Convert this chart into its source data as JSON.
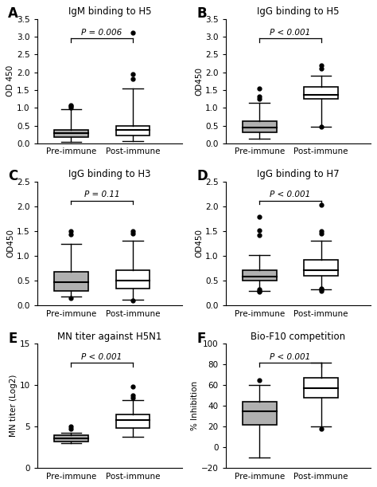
{
  "panels": [
    {
      "label": "A",
      "title": "IgM binding to H5",
      "ylabel": "OD 450",
      "ylim": [
        0.0,
        3.5
      ],
      "yticks": [
        0.0,
        0.5,
        1.0,
        1.5,
        2.0,
        2.5,
        3.0,
        3.5
      ],
      "pvalue": "P = 0.006",
      "pre": {
        "q1": 0.18,
        "median": 0.28,
        "q3": 0.38,
        "whisker_low": 0.05,
        "whisker_high": 0.97,
        "outliers": [
          1.0,
          1.05,
          1.08
        ],
        "color": "#b0b0b0"
      },
      "post": {
        "q1": 0.22,
        "median": 0.37,
        "q3": 0.48,
        "whisker_low": 0.07,
        "whisker_high": 1.55,
        "outliers": [
          1.95,
          1.82,
          3.12
        ],
        "color": "#ffffff"
      }
    },
    {
      "label": "B",
      "title": "IgG binding to H5",
      "ylabel": "OD450",
      "ylim": [
        0.0,
        3.5
      ],
      "yticks": [
        0.0,
        0.5,
        1.0,
        1.5,
        2.0,
        2.5,
        3.0,
        3.5
      ],
      "pvalue": "P < 0.001",
      "pre": {
        "q1": 0.32,
        "median": 0.45,
        "q3": 0.63,
        "whisker_low": 0.12,
        "whisker_high": 1.13,
        "outliers": [
          1.25,
          1.32,
          1.55
        ],
        "color": "#b0b0b0"
      },
      "post": {
        "q1": 1.25,
        "median": 1.37,
        "q3": 1.6,
        "whisker_low": 0.47,
        "whisker_high": 1.9,
        "outliers": [
          2.1,
          2.2,
          0.47
        ],
        "color": "#ffffff"
      }
    },
    {
      "label": "C",
      "title": "IgG binding to H3",
      "ylabel": "OD450",
      "ylim": [
        0.0,
        2.5
      ],
      "yticks": [
        0.0,
        0.5,
        1.0,
        1.5,
        2.0,
        2.5
      ],
      "pvalue": "P = 0.11",
      "pre": {
        "q1": 0.3,
        "median": 0.48,
        "q3": 0.68,
        "whisker_low": 0.18,
        "whisker_high": 1.25,
        "outliers": [
          1.43,
          1.5,
          0.15
        ],
        "color": "#b0b0b0"
      },
      "post": {
        "q1": 0.35,
        "median": 0.5,
        "q3": 0.72,
        "whisker_low": 0.12,
        "whisker_high": 1.3,
        "outliers": [
          1.45,
          1.5,
          0.1
        ],
        "color": "#ffffff"
      }
    },
    {
      "label": "D",
      "title": "IgG binding to H7",
      "ylabel": "OD450",
      "ylim": [
        0.0,
        2.5
      ],
      "yticks": [
        0.0,
        0.5,
        1.0,
        1.5,
        2.0,
        2.5
      ],
      "pvalue": "P < 0.001",
      "pre": {
        "q1": 0.5,
        "median": 0.58,
        "q3": 0.72,
        "whisker_low": 0.3,
        "whisker_high": 1.02,
        "outliers": [
          1.42,
          1.52,
          1.78,
          0.28,
          0.3,
          0.32
        ],
        "color": "#b0b0b0"
      },
      "post": {
        "q1": 0.6,
        "median": 0.72,
        "q3": 0.92,
        "whisker_low": 0.32,
        "whisker_high": 1.3,
        "outliers": [
          1.45,
          1.5,
          2.02,
          0.3,
          0.32,
          0.35
        ],
        "color": "#ffffff"
      }
    },
    {
      "label": "E",
      "title": "MN titer against H5N1",
      "ylabel": "MN titer (Log2)",
      "ylim": [
        0,
        15
      ],
      "yticks": [
        0,
        5,
        10,
        15
      ],
      "pvalue": "P < 0.001",
      "pre": {
        "q1": 3.2,
        "median": 3.6,
        "q3": 4.0,
        "whisker_low": 3.0,
        "whisker_high": 4.2,
        "outliers": [
          5.0,
          4.7
        ],
        "color": "#b0b0b0"
      },
      "post": {
        "q1": 4.8,
        "median": 5.8,
        "q3": 6.5,
        "whisker_low": 3.8,
        "whisker_high": 8.2,
        "outliers": [
          9.8,
          8.8,
          8.5
        ],
        "color": "#ffffff"
      }
    },
    {
      "label": "F",
      "title": "Bio-F10 competition",
      "ylabel": "% Inhibition",
      "ylim": [
        -20,
        100
      ],
      "yticks": [
        -20,
        0,
        20,
        40,
        60,
        80,
        100
      ],
      "pvalue": "P < 0.001",
      "pre": {
        "q1": 22,
        "median": 35,
        "q3": 44,
        "whisker_low": -10,
        "whisker_high": 60,
        "outliers": [
          65
        ],
        "color": "#b0b0b0"
      },
      "post": {
        "q1": 48,
        "median": 57,
        "q3": 67,
        "whisker_low": 20,
        "whisker_high": 82,
        "outliers": [
          18
        ],
        "color": "#ffffff"
      }
    }
  ]
}
